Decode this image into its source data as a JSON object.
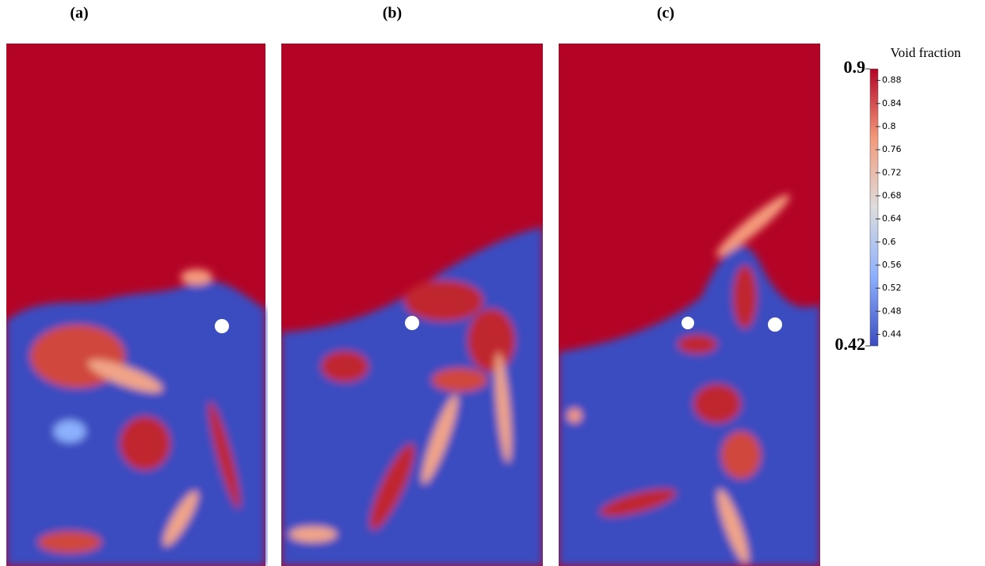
{
  "panels": [
    {
      "label": "(a)"
    },
    {
      "label": "(b)"
    },
    {
      "label": "(c)"
    }
  ],
  "colorbar": {
    "title": "Void fraction",
    "lim": [
      0.42,
      0.9
    ],
    "ticks": [
      0.44,
      0.48,
      0.52,
      0.56,
      0.6,
      0.64,
      0.68,
      0.72,
      0.76,
      0.8,
      0.84,
      0.88
    ]
  }
}
